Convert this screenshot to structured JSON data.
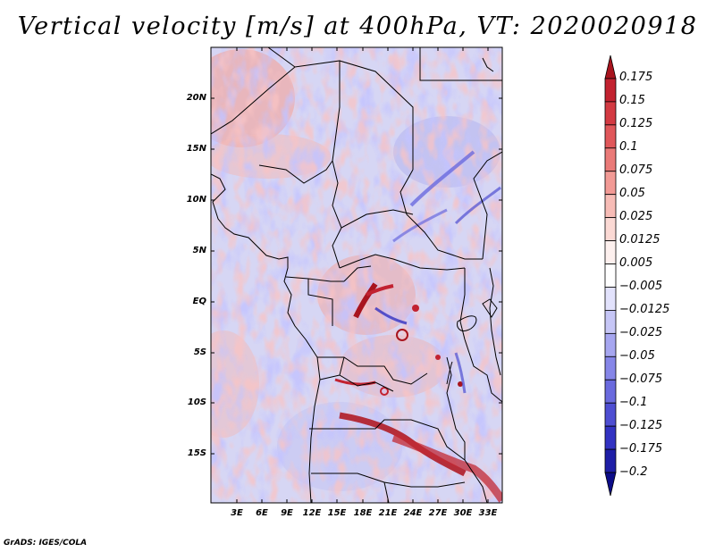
{
  "title": "Vertical velocity [m/s] at 400hPa, VT: 2020020918",
  "footer": "GrADS: IGES/COLA",
  "map": {
    "lat_labels": [
      "20N",
      "15N",
      "10N",
      "5N",
      "EQ",
      "5S",
      "10S",
      "15S"
    ],
    "lon_labels": [
      "3E",
      "6E",
      "9E",
      "12E",
      "15E",
      "18E",
      "21E",
      "24E",
      "27E",
      "30E",
      "33E"
    ]
  },
  "colorbar": {
    "labels": [
      "0.175",
      "0.15",
      "0.125",
      "0.1",
      "0.075",
      "0.05",
      "0.025",
      "0.0125",
      "0.005",
      "−0.005",
      "−0.0125",
      "−0.025",
      "−0.05",
      "−0.075",
      "−0.1",
      "−0.125",
      "−0.175",
      "−0.2"
    ],
    "colors": [
      "#a8141e",
      "#c22230",
      "#d33a42",
      "#e0575a",
      "#ea7a78",
      "#f29a95",
      "#f7bcb6",
      "#fbd9d4",
      "#fdf0ee",
      "#ffffff",
      "#e2e2fc",
      "#c6c6f6",
      "#a6a6f0",
      "#8686e8",
      "#6a6ade",
      "#4e4ed2",
      "#3232c2",
      "#1e1ea6",
      "#0c0c88"
    ]
  },
  "colors": {
    "positive": "#c8303a",
    "negative": "#4a4ad8",
    "background": "#ffffff"
  }
}
